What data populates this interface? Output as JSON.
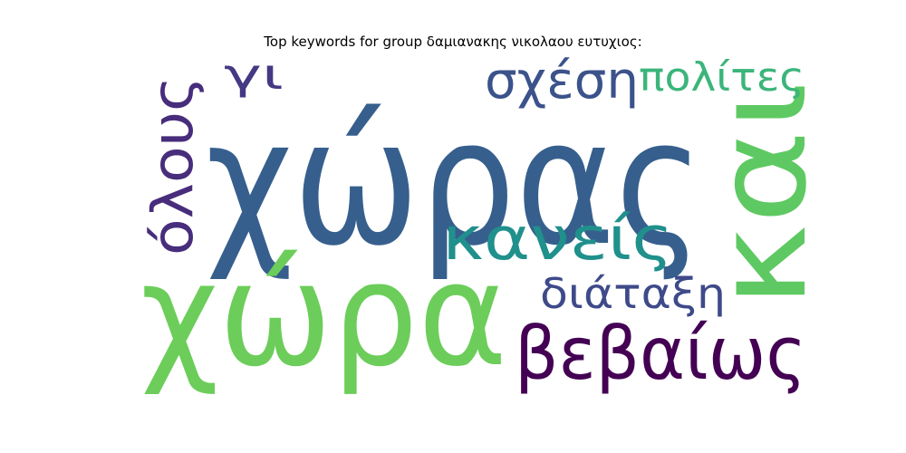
{
  "title": "Top keywords for group δαμιανακης νικολαου ευτυχιος:",
  "words": [
    {
      "text": "χώρας",
      "color": "#365f8d"
    },
    {
      "text": "χώρα",
      "color": "#6ccd5a"
    },
    {
      "text": "και",
      "color": "#5ec962"
    },
    {
      "text": "βεβαίως",
      "color": "#440154"
    },
    {
      "text": "κανείς",
      "color": "#20908c"
    },
    {
      "text": "όλους",
      "color": "#472d7b"
    },
    {
      "text": "σχέση",
      "color": "#3b528b"
    },
    {
      "text": "πολίτες",
      "color": "#3bb57a"
    },
    {
      "text": "διάταξη",
      "color": "#3e4a89"
    },
    {
      "text": "γι",
      "color": "#443983"
    }
  ]
}
